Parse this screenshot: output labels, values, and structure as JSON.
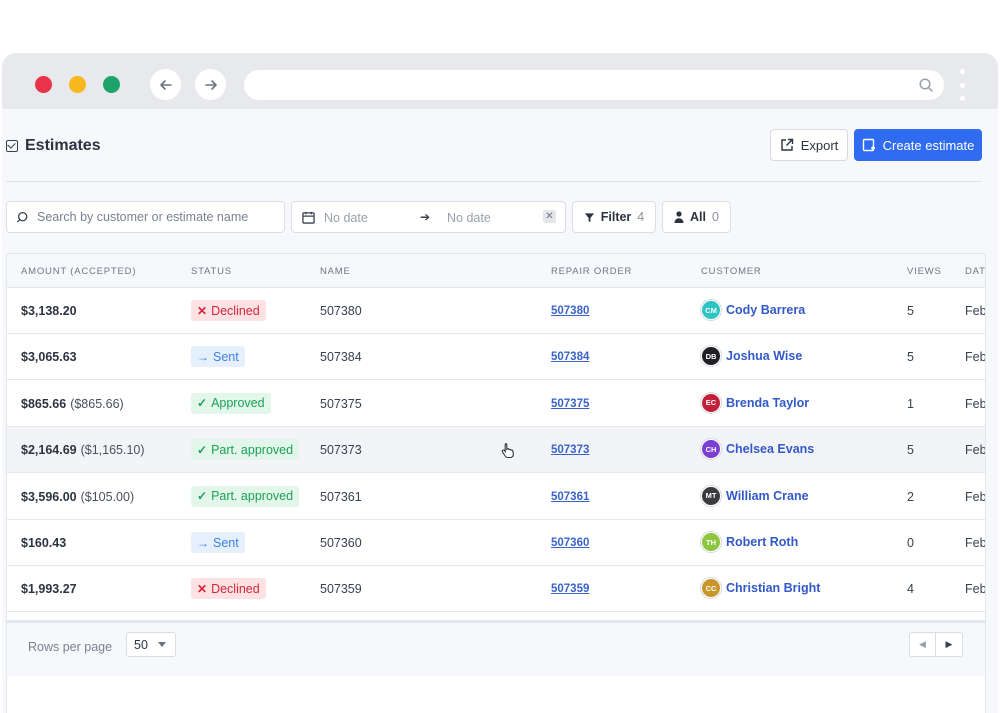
{
  "browser": {
    "url": ""
  },
  "header": {
    "title": "Estimates",
    "export_label": "Export",
    "create_label": "Create estimate"
  },
  "filters": {
    "search_placeholder": "Search by customer or estimate name",
    "date_from": "No date",
    "date_to": "No date",
    "filter_label": "Filter",
    "filter_count": "4",
    "all_label": "All",
    "all_count": "0"
  },
  "table": {
    "columns": [
      "AMOUNT (ACCEPTED)",
      "STATUS",
      "NAME",
      "REPAIR ORDER",
      "CUSTOMER",
      "VIEWS",
      "DAT"
    ],
    "rows": [
      {
        "amount": "$3,138.20",
        "accepted": "",
        "status": "Declined",
        "status_kind": "declined",
        "name": "507380",
        "repair_order": "507380",
        "initials": "CM",
        "avatar_color": "#2ec4c4",
        "customer": "Cody Barrera",
        "views": "5",
        "date": "Feb"
      },
      {
        "amount": "$3,065.63",
        "accepted": "",
        "status": "Sent",
        "status_kind": "sent",
        "name": "507384",
        "repair_order": "507384",
        "initials": "DB",
        "avatar_color": "#1f1f24",
        "customer": "Joshua Wise",
        "views": "5",
        "date": "Feb"
      },
      {
        "amount": "$865.66",
        "accepted": "($865.66)",
        "status": "Approved",
        "status_kind": "approved",
        "name": "507375",
        "repair_order": "507375",
        "initials": "EC",
        "avatar_color": "#c21f3a",
        "customer": "Brenda Taylor",
        "views": "1",
        "date": "Feb"
      },
      {
        "amount": "$2,164.69",
        "accepted": "($1,165.10)",
        "status": "Part. approved",
        "status_kind": "approved",
        "name": "507373",
        "repair_order": "507373",
        "initials": "CH",
        "avatar_color": "#7b3fd6",
        "customer": "Chelsea Evans",
        "views": "5",
        "date": "Feb"
      },
      {
        "amount": "$3,596.00",
        "accepted": "($105.00)",
        "status": "Part. approved",
        "status_kind": "approved",
        "name": "507361",
        "repair_order": "507361",
        "initials": "MT",
        "avatar_color": "#3a3a40",
        "customer": "William Crane",
        "views": "2",
        "date": "Feb"
      },
      {
        "amount": "$160.43",
        "accepted": "",
        "status": "Sent",
        "status_kind": "sent",
        "name": "507360",
        "repair_order": "507360",
        "initials": "TH",
        "avatar_color": "#8dc63f",
        "customer": "Robert Roth",
        "views": "0",
        "date": "Feb"
      },
      {
        "amount": "$1,993.27",
        "accepted": "",
        "status": "Declined",
        "status_kind": "declined",
        "name": "507359",
        "repair_order": "507359",
        "initials": "CC",
        "avatar_color": "#c9962a",
        "customer": "Christian Bright",
        "views": "4",
        "date": "Feb"
      }
    ],
    "hover_row_index": 3
  },
  "footer": {
    "rows_per_page_label": "Rows per page",
    "rows_per_page_value": "50"
  },
  "icons": {
    "status": {
      "declined": "✕",
      "sent": "→",
      "approved": "✓"
    }
  }
}
